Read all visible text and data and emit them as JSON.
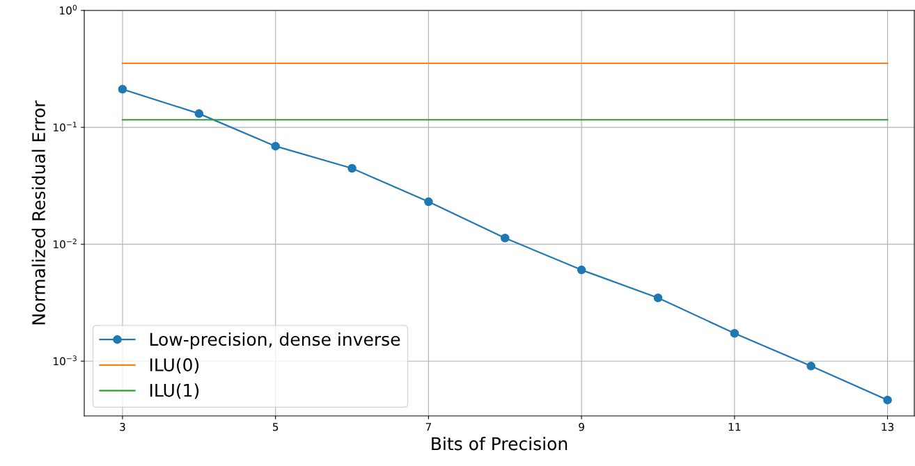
{
  "chart_data": {
    "type": "line",
    "xlabel": "Bits of Precision",
    "ylabel": "Normalized Residual Error",
    "log": "y",
    "xlim": [
      2.5,
      13.35
    ],
    "xticks": [
      3,
      5,
      7,
      9,
      11,
      13
    ],
    "ylim": [
      0.00034,
      1
    ],
    "yticks": [
      {
        "value": 1,
        "label": "10$^{0}$"
      },
      {
        "value": 0.1,
        "label": "10$^{−1}$"
      },
      {
        "value": 0.01,
        "label": "10$^{−2}$"
      },
      {
        "value": 0.001,
        "label": "10$^{−3}$"
      }
    ],
    "grid": true,
    "legend": "bottom left",
    "series": [
      {
        "name": "Low-precision, dense inverse",
        "color": "#1f77b4",
        "marker": "circle",
        "x": [
          3,
          4,
          5,
          6,
          7,
          8,
          9,
          10,
          11,
          12,
          13
        ],
        "values": [
          0.212,
          0.131,
          0.069,
          0.0446,
          0.0231,
          0.0113,
          0.00603,
          0.00348,
          0.00173,
          0.000908,
          0.000465
        ]
      },
      {
        "name": "ILU(0)",
        "color": "#ff7f0e",
        "marker": "none",
        "x": [
          3,
          13
        ],
        "values": [
          0.353,
          0.353
        ]
      },
      {
        "name": "ILU(1)",
        "color": "#2ca02c",
        "marker": "none",
        "x": [
          3,
          13
        ],
        "values": [
          0.116,
          0.116
        ]
      }
    ]
  }
}
